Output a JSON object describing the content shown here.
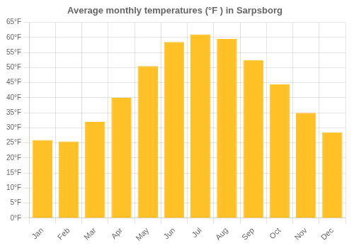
{
  "chart_data": {
    "type": "bar",
    "title": "Average monthly temperatures (°F ) in Sarpsborg",
    "categories": [
      "Jan",
      "Feb",
      "Mar",
      "Apr",
      "May",
      "Jun",
      "Jul",
      "Aug",
      "Sep",
      "Oct",
      "Nov",
      "Dec"
    ],
    "values": [
      26,
      25.5,
      32,
      40,
      50.5,
      58.5,
      61,
      59.5,
      52.5,
      44.5,
      35,
      28.5
    ],
    "color": "#FFC125",
    "ylim": [
      0,
      65
    ],
    "yticks": [
      {
        "value": 0,
        "label": "0°F"
      },
      {
        "value": 5,
        "label": "5°F"
      },
      {
        "value": 10,
        "label": "10°F"
      },
      {
        "value": 15,
        "label": "15°F"
      },
      {
        "value": 20,
        "label": "20°F"
      },
      {
        "value": 25,
        "label": "25°F"
      },
      {
        "value": 30,
        "label": "30°F"
      },
      {
        "value": 35,
        "label": "35°F"
      },
      {
        "value": 40,
        "label": "40°F"
      },
      {
        "value": 45,
        "label": "45°F"
      },
      {
        "value": 50,
        "label": "50°F"
      },
      {
        "value": 55,
        "label": "55°F"
      },
      {
        "value": 60,
        "label": "60°F"
      },
      {
        "value": 65,
        "label": "65°F"
      }
    ],
    "grid": true
  }
}
